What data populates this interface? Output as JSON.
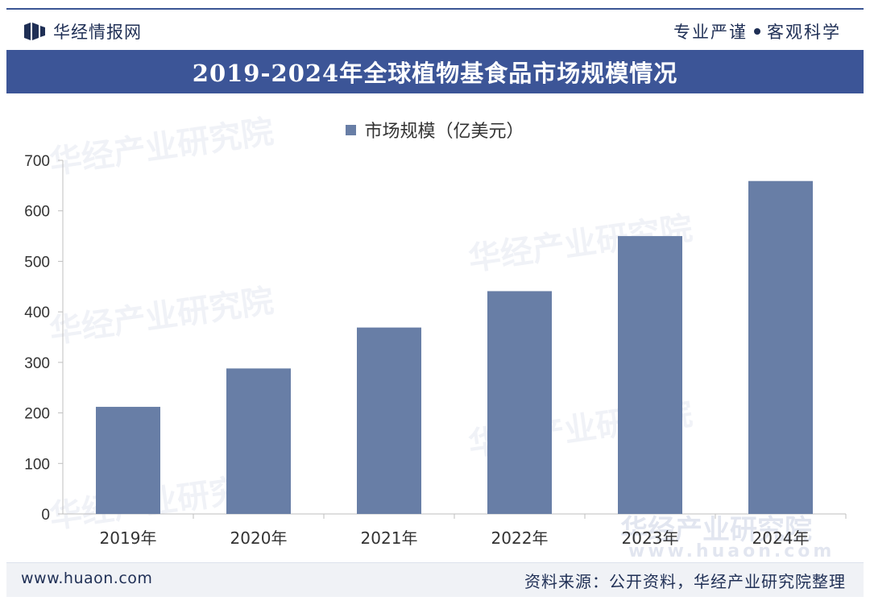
{
  "header": {
    "brand": "华经情报网",
    "slogan_left": "专业严谨",
    "slogan_right": "客观科学"
  },
  "title": "2019-2024年全球植物基食品市场规模情况",
  "footer": {
    "website": "www.huaon.com",
    "source": "资料来源：公开资料，华经产业研究院整理"
  },
  "watermark": {
    "text": "华经产业研究院",
    "url": "www.huaon.com"
  },
  "colors": {
    "bar": "#687ea6",
    "title_bg": "#3c5597",
    "accent": "#1f2f55"
  },
  "chart_data": {
    "type": "bar",
    "categories": [
      "2019年",
      "2020年",
      "2021年",
      "2022年",
      "2023年",
      "2024年"
    ],
    "series": [
      {
        "name": "市场规模（亿美元）",
        "values": [
          212,
          288,
          369,
          441,
          550,
          659
        ]
      }
    ],
    "ylim": [
      0,
      700
    ],
    "yticks": [
      0,
      100,
      200,
      300,
      400,
      500,
      600,
      700
    ],
    "grid": false,
    "legend_position": "top-center"
  }
}
